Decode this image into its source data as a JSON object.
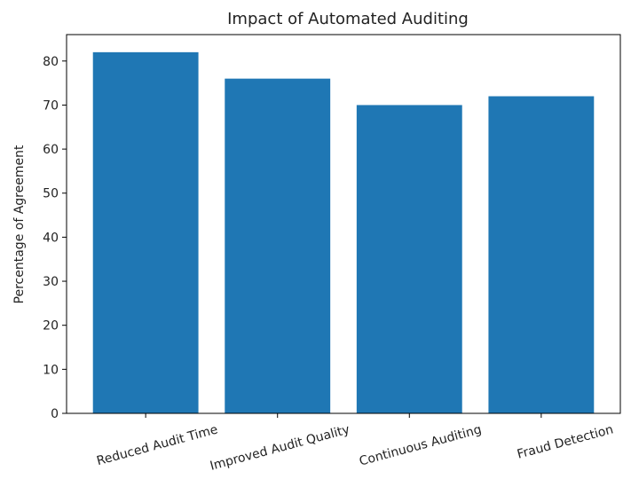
{
  "chart_data": {
    "type": "bar",
    "title": "Impact of Automated Auditing",
    "xlabel": "",
    "ylabel": "Percentage of Agreement",
    "categories": [
      "Reduced Audit Time",
      "Improved Audit Quality",
      "Continuous Auditing",
      "Fraud Detection"
    ],
    "values": [
      82,
      76,
      70,
      72
    ],
    "ylim": [
      0,
      86
    ],
    "yticks": [
      0,
      10,
      20,
      30,
      40,
      50,
      60,
      70,
      80
    ],
    "grid": false,
    "colors": {
      "bar": "#1f77b4",
      "axis": "#000000",
      "text": "#222222"
    }
  }
}
